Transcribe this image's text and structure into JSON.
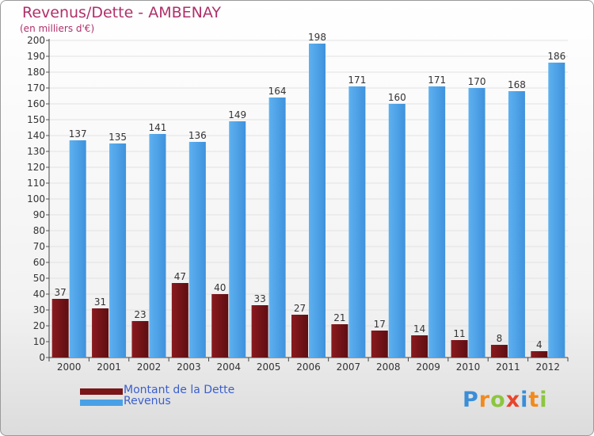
{
  "header": {
    "title": "Revenus/Dette - AMBENAY",
    "subtitle": "(en milliers d'€)"
  },
  "chart_data": {
    "type": "bar",
    "categories": [
      "2000",
      "2001",
      "2002",
      "2003",
      "2004",
      "2005",
      "2006",
      "2007",
      "2008",
      "2009",
      "2010",
      "2011",
      "2012"
    ],
    "series": [
      {
        "name": "Montant de la Dette",
        "values": [
          37,
          31,
          23,
          47,
          40,
          33,
          27,
          21,
          17,
          14,
          11,
          8,
          4
        ],
        "color": "#7a1518"
      },
      {
        "name": "Revenus",
        "values": [
          137,
          135,
          141,
          136,
          149,
          164,
          198,
          171,
          160,
          171,
          170,
          168,
          186
        ],
        "color": "#4aa0e6"
      }
    ],
    "ylim": [
      0,
      200
    ],
    "yticks": [
      0,
      10,
      20,
      30,
      40,
      50,
      60,
      70,
      80,
      90,
      100,
      110,
      120,
      130,
      140,
      150,
      160,
      170,
      180,
      190,
      200
    ],
    "grid": true,
    "legend_position": "bottom-left"
  },
  "legend": {
    "items": [
      {
        "label": "Montant de la Dette",
        "color": "#7a1518"
      },
      {
        "label": "Revenus",
        "color": "#4aa0e6"
      }
    ]
  },
  "logo": {
    "text": "Proxiti",
    "letter_colors": [
      "#3a8ed8",
      "#f28a1c",
      "#8cc63f",
      "#e8452c",
      "#3a8ed8",
      "#f28a1c",
      "#8cc63f"
    ]
  }
}
